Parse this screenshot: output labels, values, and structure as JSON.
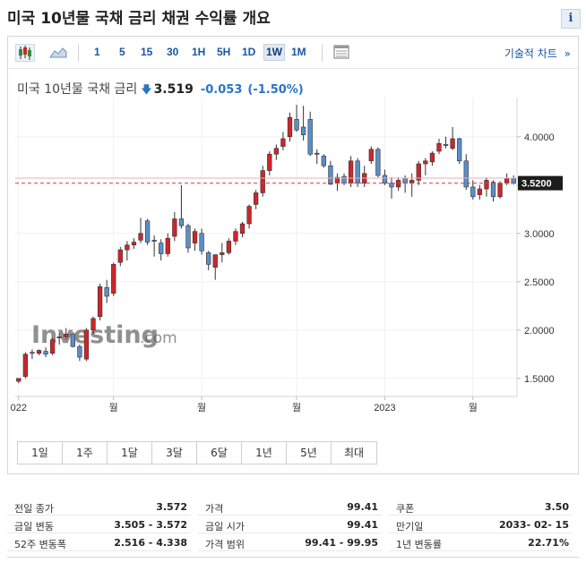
{
  "header": {
    "title": "미국 10년물 국채 금리  채권 수익률 개요",
    "info_label": "i"
  },
  "toolbar": {
    "periods": [
      "1",
      "5",
      "15",
      "30",
      "1H",
      "5H",
      "1D",
      "1W",
      "1M"
    ],
    "active_period": "1W",
    "tech_chart_label": "기술적 차트",
    "tech_chart_arrow": "»"
  },
  "quote": {
    "name": "미국 10년물 국채 금리",
    "arrow": "🡇",
    "price": "3.519",
    "change": "-0.053",
    "change_pct": "(-1.50%)"
  },
  "watermark": {
    "brand": "Investing",
    "suffix": ".com"
  },
  "price_tag": "3.5200",
  "range_buttons": [
    "1일",
    "1주",
    "1달",
    "3달",
    "6달",
    "1년",
    "5년",
    "최대"
  ],
  "stats": {
    "col1": [
      {
        "label": "전일 종가",
        "value": "3.572"
      },
      {
        "label": "금일 변동",
        "value": "3.505 - 3.572"
      },
      {
        "label": "52주 변동폭",
        "value": "2.516 - 4.338"
      }
    ],
    "col2": [
      {
        "label": "가격",
        "value": "99.41"
      },
      {
        "label": "금일 시가",
        "value": "99.41"
      },
      {
        "label": "가격 범위",
        "value": "99.41 - 99.95"
      }
    ],
    "col3": [
      {
        "label": "쿠폰",
        "value": "3.50"
      },
      {
        "label": "만기일",
        "value": "2033- 02- 15"
      },
      {
        "label": "1년 변동률",
        "value": "22.71%"
      }
    ]
  },
  "colors": {
    "up": "#d0242b",
    "down": "#5a8fc9",
    "link": "#1a56a6"
  },
  "chart_data": {
    "type": "candlestick",
    "ylim": [
      1.35,
      4.35
    ],
    "y_ticks": [
      "4.0000",
      "3.5000",
      "3.0000",
      "2.5000",
      "2.0000",
      "1.5000"
    ],
    "y_tick_values": [
      4.0,
      3.5,
      3.0,
      2.5,
      2.0,
      1.5
    ],
    "x_ticks": [
      "022",
      "월",
      "월",
      "월",
      "2023",
      "월"
    ],
    "x_tick_index": [
      0,
      14,
      27,
      41,
      54,
      67
    ],
    "reference_line": 3.572,
    "last_value": 3.52,
    "candles": [
      [
        1.47,
        1.5,
        1.45,
        1.5
      ],
      [
        1.52,
        1.77,
        1.5,
        1.75
      ],
      [
        1.77,
        1.8,
        1.7,
        1.76
      ],
      [
        1.76,
        1.8,
        1.74,
        1.79
      ],
      [
        1.78,
        1.82,
        1.72,
        1.75
      ],
      [
        1.76,
        1.92,
        1.74,
        1.9
      ],
      [
        1.92,
        1.97,
        1.85,
        1.93
      ],
      [
        1.93,
        2.02,
        1.9,
        1.96
      ],
      [
        1.96,
        1.98,
        1.82,
        1.83
      ],
      [
        1.83,
        1.85,
        1.68,
        1.72
      ],
      [
        1.7,
        2.02,
        1.68,
        2.0
      ],
      [
        2.0,
        2.14,
        1.96,
        2.12
      ],
      [
        2.14,
        2.48,
        2.1,
        2.45
      ],
      [
        2.44,
        2.52,
        2.28,
        2.35
      ],
      [
        2.38,
        2.7,
        2.35,
        2.68
      ],
      [
        2.7,
        2.86,
        2.66,
        2.83
      ],
      [
        2.83,
        2.92,
        2.72,
        2.88
      ],
      [
        2.88,
        2.95,
        2.84,
        2.91
      ],
      [
        2.93,
        3.16,
        2.9,
        3.0
      ],
      [
        3.13,
        3.15,
        2.88,
        2.91
      ],
      [
        2.93,
        2.98,
        2.76,
        2.92
      ],
      [
        2.9,
        2.94,
        2.72,
        2.79
      ],
      [
        2.79,
        3.0,
        2.76,
        2.95
      ],
      [
        2.97,
        3.22,
        2.92,
        3.15
      ],
      [
        3.15,
        3.5,
        3.05,
        3.08
      ],
      [
        3.08,
        3.1,
        2.8,
        2.85
      ],
      [
        2.9,
        3.05,
        2.82,
        3.02
      ],
      [
        3.0,
        3.05,
        2.78,
        2.82
      ],
      [
        2.8,
        2.82,
        2.62,
        2.68
      ],
      [
        2.65,
        2.78,
        2.52,
        2.78
      ],
      [
        2.78,
        2.9,
        2.7,
        2.8
      ],
      [
        2.8,
        2.95,
        2.78,
        2.92
      ],
      [
        2.92,
        3.05,
        2.88,
        3.02
      ],
      [
        3.0,
        3.12,
        2.96,
        3.1
      ],
      [
        3.1,
        3.3,
        3.05,
        3.28
      ],
      [
        3.3,
        3.45,
        3.25,
        3.42
      ],
      [
        3.42,
        3.7,
        3.38,
        3.65
      ],
      [
        3.65,
        3.85,
        3.6,
        3.82
      ],
      [
        3.82,
        3.92,
        3.76,
        3.88
      ],
      [
        3.9,
        4.05,
        3.86,
        3.98
      ],
      [
        4.0,
        4.25,
        3.95,
        4.2
      ],
      [
        4.18,
        4.33,
        4.05,
        4.07
      ],
      [
        4.1,
        4.32,
        3.96,
        4.02
      ],
      [
        4.18,
        4.26,
        3.8,
        3.82
      ],
      [
        3.82,
        3.87,
        3.72,
        3.83
      ],
      [
        3.8,
        3.82,
        3.68,
        3.7
      ],
      [
        3.7,
        3.75,
        3.5,
        3.51
      ],
      [
        3.52,
        3.62,
        3.44,
        3.58
      ],
      [
        3.59,
        3.62,
        3.5,
        3.52
      ],
      [
        3.52,
        3.8,
        3.48,
        3.75
      ],
      [
        3.75,
        3.78,
        3.48,
        3.52
      ],
      [
        3.52,
        3.7,
        3.48,
        3.62
      ],
      [
        3.75,
        3.9,
        3.72,
        3.87
      ],
      [
        3.87,
        3.89,
        3.58,
        3.6
      ],
      [
        3.6,
        3.66,
        3.5,
        3.52
      ],
      [
        3.52,
        3.58,
        3.36,
        3.48
      ],
      [
        3.48,
        3.58,
        3.44,
        3.55
      ],
      [
        3.57,
        3.6,
        3.42,
        3.52
      ],
      [
        3.52,
        3.62,
        3.38,
        3.55
      ],
      [
        3.55,
        3.75,
        3.5,
        3.72
      ],
      [
        3.72,
        3.78,
        3.6,
        3.75
      ],
      [
        3.74,
        3.85,
        3.7,
        3.83
      ],
      [
        3.85,
        3.98,
        3.82,
        3.93
      ],
      [
        3.92,
        4.0,
        3.88,
        3.91
      ],
      [
        3.88,
        4.1,
        3.86,
        3.98
      ],
      [
        3.98,
        3.99,
        3.72,
        3.75
      ],
      [
        3.75,
        3.82,
        3.45,
        3.48
      ],
      [
        3.48,
        3.55,
        3.35,
        3.38
      ],
      [
        3.4,
        3.5,
        3.35,
        3.46
      ],
      [
        3.46,
        3.58,
        3.38,
        3.55
      ],
      [
        3.53,
        3.55,
        3.33,
        3.38
      ],
      [
        3.38,
        3.54,
        3.36,
        3.52
      ],
      [
        3.52,
        3.62,
        3.5,
        3.57
      ],
      [
        3.572,
        3.6,
        3.505,
        3.52
      ]
    ]
  }
}
